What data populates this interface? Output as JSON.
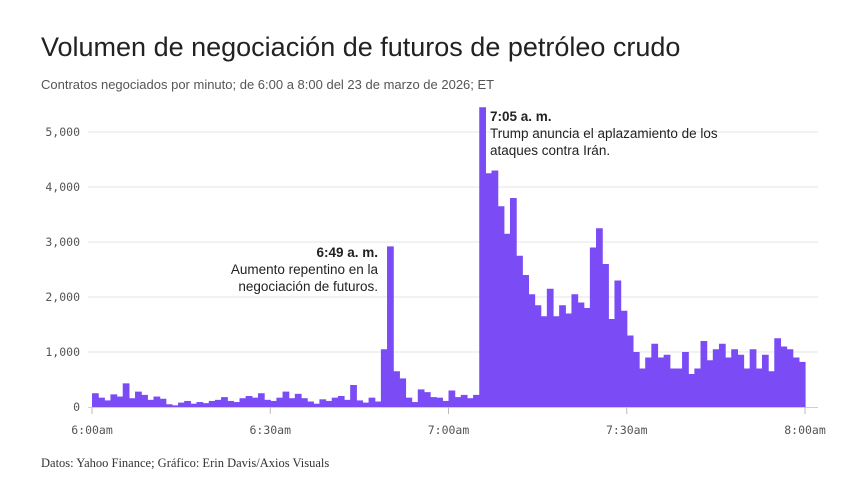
{
  "header": {
    "title": "Volumen de negociación de futuros de petróleo crudo",
    "subtitle": "Contratos negociados por minuto; de 6:00 a 8:00 del 23 de marzo de 2026; ET"
  },
  "footer": {
    "source": "Datos: Yahoo Finance; Gráfico: Erin Davis/Axios Visuals"
  },
  "chart_data": {
    "type": "area",
    "title": "Volumen de negociación de futuros de petróleo crudo",
    "subtitle": "Contratos negociados por minuto; de 6:00 a 8:00 del 23 de marzo de 2026; ET",
    "xlabel": "",
    "ylabel": "",
    "xlim_minutes": [
      0,
      120
    ],
    "ylim": [
      0,
      5500
    ],
    "grid": true,
    "color": "#7b4cf5",
    "y_ticks": [
      {
        "value": 0,
        "label": "0"
      },
      {
        "value": 1000,
        "label": "1,000"
      },
      {
        "value": 2000,
        "label": "2,000"
      },
      {
        "value": 3000,
        "label": "3,000"
      },
      {
        "value": 4000,
        "label": "4,000"
      },
      {
        "value": 5000,
        "label": "5,000"
      }
    ],
    "x_ticks": [
      {
        "minute": 0,
        "label": "6:00am"
      },
      {
        "minute": 30,
        "label": "6:30am"
      },
      {
        "minute": 60,
        "label": "7:00am"
      },
      {
        "minute": 90,
        "label": "7:30am"
      },
      {
        "minute": 120,
        "label": "8:00am"
      }
    ],
    "values": [
      250,
      170,
      120,
      230,
      190,
      430,
      160,
      280,
      220,
      130,
      190,
      150,
      50,
      30,
      80,
      110,
      60,
      90,
      70,
      110,
      130,
      180,
      110,
      90,
      160,
      200,
      170,
      250,
      130,
      110,
      170,
      280,
      160,
      240,
      160,
      100,
      60,
      140,
      110,
      170,
      200,
      130,
      400,
      120,
      80,
      170,
      100,
      1050,
      2920,
      650,
      520,
      170,
      90,
      320,
      270,
      180,
      170,
      110,
      300,
      180,
      220,
      160,
      220,
      5450,
      4250,
      4300,
      3650,
      3150,
      3800,
      2750,
      2400,
      2050,
      1850,
      1650,
      2150,
      1650,
      1850,
      1700,
      2050,
      1900,
      1800,
      2900,
      3250,
      2600,
      1600,
      2300,
      1750,
      1300,
      1000,
      700,
      900,
      1150,
      900,
      950,
      700,
      700,
      1000,
      600,
      700,
      1200,
      850,
      1050,
      1150,
      900,
      1050,
      950,
      700,
      1050,
      700,
      950,
      650,
      1250,
      1100,
      1050,
      900,
      820
    ],
    "annotations": [
      {
        "minute": 49,
        "time": "6:49 a. m.",
        "lines": [
          "Aumento repentino en la",
          "negociación de futuros."
        ],
        "align": "right"
      },
      {
        "minute": 65,
        "time": "7:05 a. m.",
        "lines": [
          "Trump anuncia el aplazamiento de los",
          "ataques contra Irán."
        ],
        "align": "left"
      }
    ]
  }
}
